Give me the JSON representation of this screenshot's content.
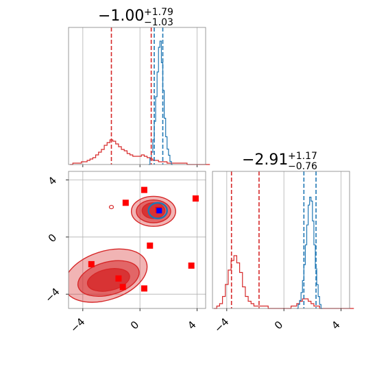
{
  "chart_data": {
    "type": "corner",
    "parameters": [
      {
        "title_main": "−1.00",
        "title_sup": "+1.79",
        "title_sub": "−1.03",
        "range": [
          -5,
          4.6
        ],
        "ticks": [
          -4,
          0,
          4
        ],
        "tick_labels": [
          "−4",
          "0",
          "4"
        ]
      },
      {
        "title_main": "−2.91",
        "title_sup": "+1.17",
        "title_sub": "−0.76",
        "range": [
          -5,
          4.6
        ],
        "ticks": [
          -4,
          0,
          4
        ],
        "tick_labels": [
          "−4",
          "0",
          "4"
        ]
      }
    ],
    "grid": true,
    "series": [
      {
        "color": "#d62728",
        "quantile_lines_p1": [
          -2.0,
          0.79
        ],
        "quantile_lines_p2": [
          -3.67,
          -1.74
        ],
        "hist_p1": {
          "bin_start": -4.9,
          "bin_width": 0.2,
          "counts": [
            0,
            1,
            1,
            1,
            2,
            2,
            3,
            4,
            5,
            7,
            9,
            11,
            14,
            16,
            18,
            17,
            15,
            13,
            11,
            10,
            8,
            7,
            6,
            6,
            6,
            7,
            6,
            5,
            4,
            3,
            3,
            2,
            2,
            2,
            1,
            1,
            1,
            1,
            1,
            1,
            1,
            0,
            0,
            0,
            0,
            0,
            0,
            0,
            0
          ]
        },
        "hist_p2": {
          "bin_start": -4.9,
          "bin_width": 0.2,
          "counts": [
            0,
            1,
            2,
            5,
            10,
            16,
            20,
            22,
            19,
            15,
            9,
            5,
            3,
            2,
            1,
            1,
            1,
            1,
            1,
            0,
            0,
            0,
            0,
            0,
            0,
            0,
            0,
            1,
            1,
            2,
            3,
            4,
            4,
            3,
            2,
            1,
            1,
            0,
            0,
            0,
            0,
            0,
            0,
            0,
            0,
            0,
            0,
            0,
            0
          ]
        },
        "contour_levels": [
          {
            "center": [
              -2.4,
              -2.7
            ],
            "rx": 3.0,
            "ry": 1.7,
            "rotation_deg": -18,
            "fill_opacity": 0.35
          },
          {
            "center": [
              -2.2,
              -2.9
            ],
            "rx": 2.2,
            "ry": 1.15,
            "rotation_deg": -15,
            "fill_opacity": 0.55
          },
          {
            "center": [
              -2.2,
              -3.0
            ],
            "rx": 1.5,
            "ry": 0.75,
            "rotation_deg": -12,
            "fill_opacity": 0.8
          },
          {
            "center": [
              0.95,
              1.8
            ],
            "rx": 1.55,
            "ry": 1.05,
            "rotation_deg": 0,
            "fill_opacity": 0.35
          },
          {
            "center": [
              0.95,
              1.8
            ],
            "rx": 1.2,
            "ry": 0.8,
            "rotation_deg": 0,
            "fill_opacity": 0.55
          },
          {
            "center": [
              0.95,
              1.85
            ],
            "rx": 0.8,
            "ry": 0.55,
            "rotation_deg": 0,
            "fill_opacity": 0.8
          }
        ],
        "markers": [
          {
            "x": 0.3,
            "y": 3.3
          },
          {
            "x": -1.0,
            "y": 2.4
          },
          {
            "x": 3.9,
            "y": 2.7
          },
          {
            "x": 0.7,
            "y": -0.6
          },
          {
            "x": -3.4,
            "y": -1.9
          },
          {
            "x": 3.6,
            "y": -2.0
          },
          {
            "x": -1.5,
            "y": -2.9
          },
          {
            "x": -1.2,
            "y": -3.5
          },
          {
            "x": 0.3,
            "y": -3.6
          },
          {
            "x": 1.3,
            "y": 1.9
          }
        ],
        "extra_contour": {
          "x": -2.0,
          "y": 2.1
        }
      },
      {
        "color": "#1f77b4",
        "quantile_lines_p1": [
          1.0,
          1.6
        ],
        "quantile_lines_p2": [
          1.4,
          2.25
        ],
        "hist_p1": {
          "bin_start": 0.6,
          "bin_width": 0.1,
          "counts": [
            0,
            2,
            4,
            8,
            14,
            22,
            30,
            38,
            40,
            33,
            24,
            15,
            9,
            5,
            3,
            1,
            0
          ]
        },
        "hist_p2": {
          "bin_start": 0.9,
          "bin_width": 0.1,
          "counts": [
            0,
            1,
            2,
            4,
            7,
            11,
            16,
            21,
            26,
            28,
            27,
            22,
            16,
            10,
            6,
            3,
            1,
            0
          ]
        },
        "contour": {
          "center": [
            1.25,
            1.85
          ],
          "rx": 0.65,
          "ry": 0.55
        },
        "markers": [
          {
            "x": 1.35,
            "y": 1.85
          }
        ]
      }
    ]
  }
}
